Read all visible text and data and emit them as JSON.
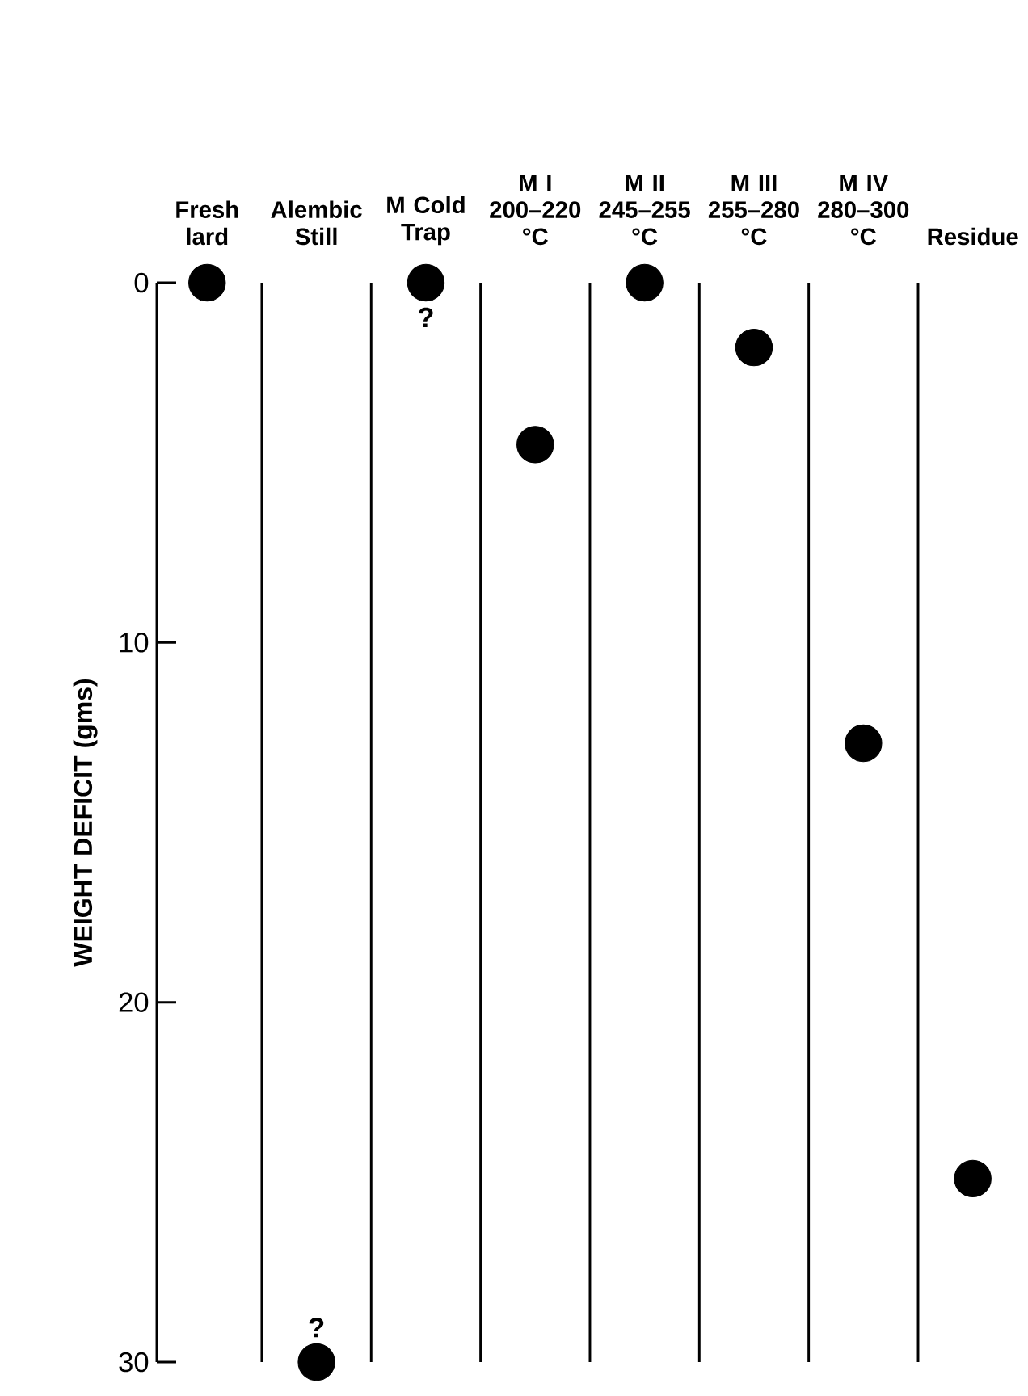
{
  "chart_data": {
    "type": "scatter",
    "ylabel": "WEIGHT DEFICIT (gms)",
    "categories": [
      "Fresh lard",
      "Alembic Still",
      "M Cold Trap",
      "M I 200–220 °C",
      "M II 245–255 °C",
      "M III 255–280 °C",
      "M IV 280–300 °C",
      "Residue"
    ],
    "values": [
      0,
      30,
      0,
      4.5,
      0,
      1.8,
      12.8,
      24.9
    ],
    "color": "#000000",
    "marker": "circle",
    "grid": "x",
    "ylim": [
      30,
      0
    ],
    "yticks": [
      0,
      10,
      20,
      30
    ],
    "annotations": [
      {
        "text": "?",
        "x": "Alembic Still",
        "y": 30
      },
      {
        "text": "?",
        "x": "M Cold Trap",
        "y": 0
      }
    ]
  }
}
